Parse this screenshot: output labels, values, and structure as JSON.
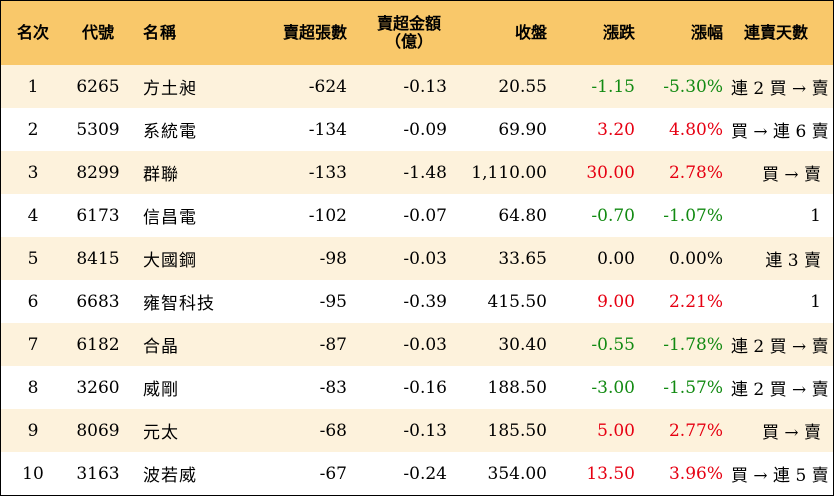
{
  "headers": {
    "rank": "名次",
    "code": "代號",
    "name": "名稱",
    "sheets": "賣超張數",
    "amount_line1": "賣超金額",
    "amount_line2": "（億）",
    "close": "收盤",
    "change": "漲跌",
    "pct": "漲幅",
    "days": "連賣天數"
  },
  "colors": {
    "header_bg": "#f9c86a",
    "alt_row_bg": "#fdf2dc",
    "up": "#e60012",
    "down": "#128a12"
  },
  "rows": [
    {
      "rank": "1",
      "code": "6265",
      "name": "方土昶",
      "sheets": "-624",
      "amount": "-0.13",
      "close": "20.55",
      "change": "-1.15",
      "pct": "-5.30%",
      "dir": "neg",
      "days": "連 2 買 → 賣"
    },
    {
      "rank": "2",
      "code": "5309",
      "name": "系統電",
      "sheets": "-134",
      "amount": "-0.09",
      "close": "69.90",
      "change": "3.20",
      "pct": "4.80%",
      "dir": "pos",
      "days": "買 → 連 6 賣"
    },
    {
      "rank": "3",
      "code": "8299",
      "name": "群聯",
      "sheets": "-133",
      "amount": "-1.48",
      "close": "1,110.00",
      "change": "30.00",
      "pct": "2.78%",
      "dir": "pos",
      "days": "買 → 賣"
    },
    {
      "rank": "4",
      "code": "6173",
      "name": "信昌電",
      "sheets": "-102",
      "amount": "-0.07",
      "close": "64.80",
      "change": "-0.70",
      "pct": "-1.07%",
      "dir": "neg",
      "days": "1"
    },
    {
      "rank": "5",
      "code": "8415",
      "name": "大國鋼",
      "sheets": "-98",
      "amount": "-0.03",
      "close": "33.65",
      "change": "0.00",
      "pct": "0.00%",
      "dir": "flat",
      "days": "連 3 賣"
    },
    {
      "rank": "6",
      "code": "6683",
      "name": "雍智科技",
      "sheets": "-95",
      "amount": "-0.39",
      "close": "415.50",
      "change": "9.00",
      "pct": "2.21%",
      "dir": "pos",
      "days": "1"
    },
    {
      "rank": "7",
      "code": "6182",
      "name": "合晶",
      "sheets": "-87",
      "amount": "-0.03",
      "close": "30.40",
      "change": "-0.55",
      "pct": "-1.78%",
      "dir": "neg",
      "days": "連 2 買 → 賣"
    },
    {
      "rank": "8",
      "code": "3260",
      "name": "威剛",
      "sheets": "-83",
      "amount": "-0.16",
      "close": "188.50",
      "change": "-3.00",
      "pct": "-1.57%",
      "dir": "neg",
      "days": "連 2 買 → 賣"
    },
    {
      "rank": "9",
      "code": "8069",
      "name": "元太",
      "sheets": "-68",
      "amount": "-0.13",
      "close": "185.50",
      "change": "5.00",
      "pct": "2.77%",
      "dir": "pos",
      "days": "買 → 賣"
    },
    {
      "rank": "10",
      "code": "3163",
      "name": "波若威",
      "sheets": "-67",
      "amount": "-0.24",
      "close": "354.00",
      "change": "13.50",
      "pct": "3.96%",
      "dir": "pos",
      "days": "買 → 連 5 賣"
    }
  ]
}
